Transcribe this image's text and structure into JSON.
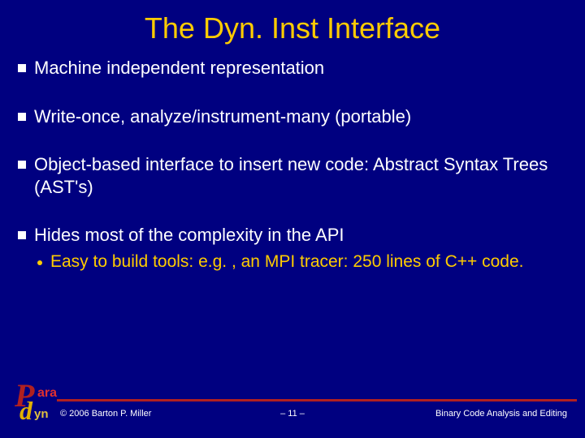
{
  "title": "The Dyn. Inst Interface",
  "bullets": [
    {
      "text": "Machine independent representation"
    },
    {
      "text": "Write-once, analyze/instrument-many (portable)"
    },
    {
      "text": "Object-based interface to insert new code: Abstract Syntax Trees (AST's)"
    },
    {
      "text": "Hides most of the complexity in the API",
      "sub": "Easy to build tools: e.g. , an MPI tracer: 250 lines of C++ code."
    }
  ],
  "footer": {
    "copyright": "© 2006 Barton P. Miller",
    "page": "– 11 –",
    "right": "Binary Code Analysis and Editing"
  },
  "logo": {
    "p": "P",
    "ara": "ara",
    "d": "d",
    "yn": "yn"
  },
  "colors": {
    "background": "#000080",
    "title": "#ffcc00",
    "body_text": "#ffffff",
    "sub_text": "#ffcc00",
    "rule": "#b02020"
  }
}
